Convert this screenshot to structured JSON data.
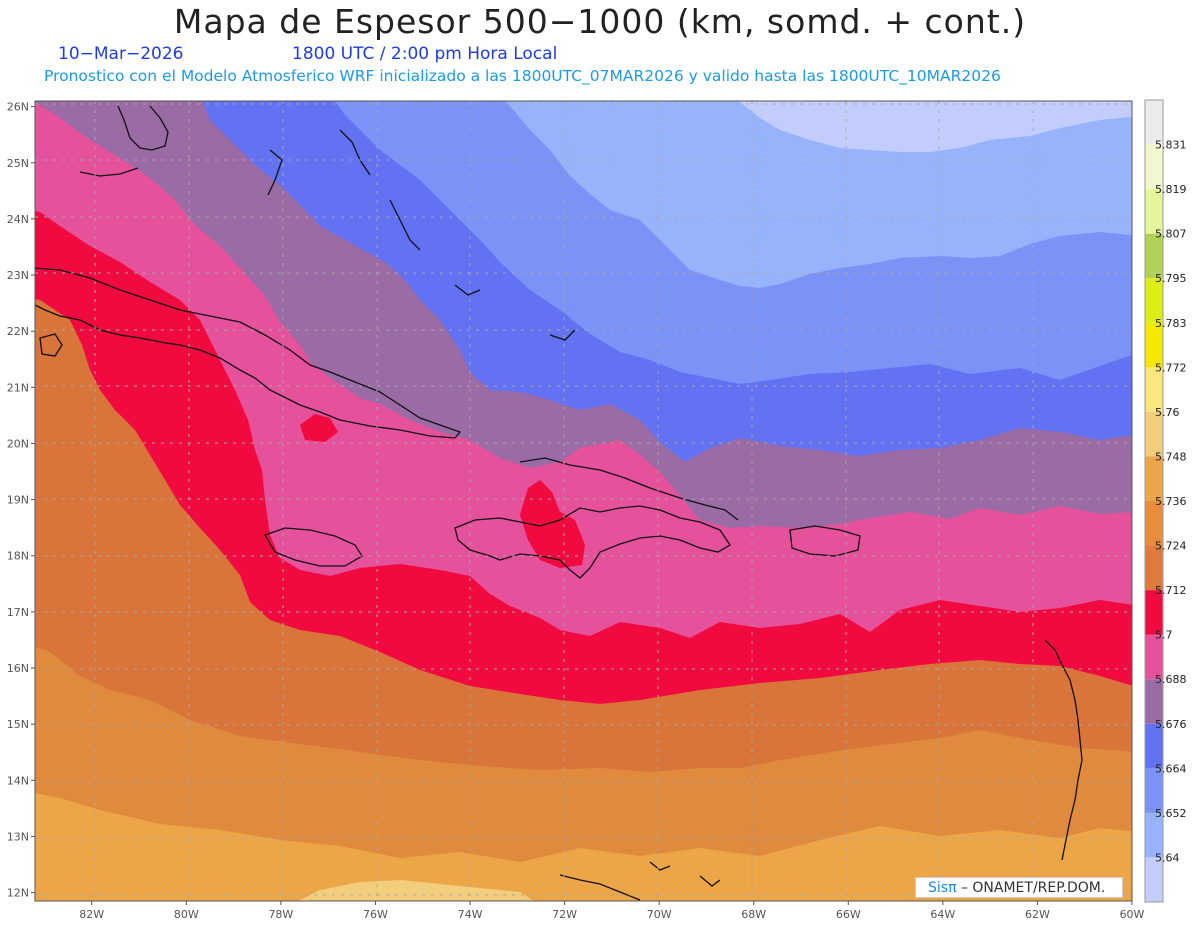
{
  "title": "Mapa de Espesor 500−1000 (km, somd. + cont.)",
  "date": "10−Mar−2026",
  "time": "1800 UTC / 2:00 pm Hora Local",
  "forecast_line": "Pronostico con el Modelo Atmosferico WRF inicializado a las 1800UTC_07MAR2026 y valido hasta las   1800UTC_10MAR2026",
  "credit": {
    "brand": "Sisπ",
    "text": "– ONAMET/REP.DOM."
  },
  "map": {
    "lon_range": [
      -83.2,
      -60
    ],
    "lat_range": [
      11.85,
      26.1
    ],
    "lat_ticks": [
      "12N",
      "13N",
      "14N",
      "15N",
      "16N",
      "17N",
      "18N",
      "19N",
      "20N",
      "21N",
      "22N",
      "23N",
      "24N",
      "25N",
      "26N"
    ],
    "lon_ticks": [
      "82W",
      "80W",
      "78W",
      "76W",
      "74W",
      "72W",
      "70W",
      "68W",
      "66W",
      "64W",
      "62W",
      "60W"
    ]
  },
  "legend": {
    "levels": [
      "5.64",
      "5.652",
      "5.664",
      "5.676",
      "5.688",
      "5.7",
      "5.712",
      "5.724",
      "5.736",
      "5.748",
      "5.76",
      "5.772",
      "5.783",
      "5.795",
      "5.807",
      "5.819",
      "5.831"
    ],
    "colors": [
      "#c3cdfb",
      "#96b3fc",
      "#7b92f6",
      "#6272f3",
      "#9b6ba6",
      "#e6519c",
      "#f00a3f",
      "#df7a3c",
      "#e98d3d",
      "#eca648",
      "#f2cd7c",
      "#fbe77c",
      "#f4e802",
      "#dcee16",
      "#b2d157",
      "#e4f59a",
      "#f2f7ce",
      "#ebebeb"
    ]
  }
}
